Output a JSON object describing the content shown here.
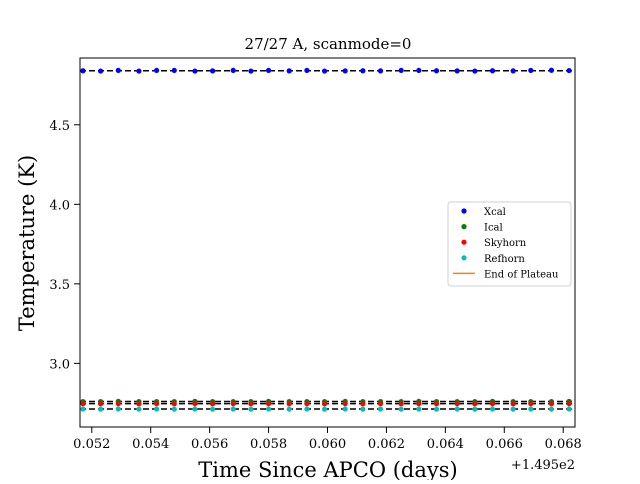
{
  "chart_data": {
    "type": "scatter",
    "title": "27/27 A, scanmode=0",
    "xlabel": "Time Since APCO (days)",
    "ylabel": "Temperature (K)",
    "offset_text": "+1.495e2",
    "xlim": [
      0.0516,
      0.0684
    ],
    "ylim": [
      2.6,
      4.92
    ],
    "x_ticks": [
      0.052,
      0.054,
      0.056,
      0.058,
      0.06,
      0.062,
      0.064,
      0.066,
      0.068
    ],
    "x_tick_labels": [
      "0.052",
      "0.054",
      "0.056",
      "0.058",
      "0.060",
      "0.062",
      "0.064",
      "0.066",
      "0.068"
    ],
    "y_ticks": [
      3.0,
      3.5,
      4.0,
      4.5
    ],
    "y_tick_labels": [
      "3.0",
      "3.5",
      "4.0",
      "4.5"
    ],
    "x": [
      0.0517,
      0.0523,
      0.0529,
      0.0536,
      0.0542,
      0.0548,
      0.0555,
      0.0561,
      0.0568,
      0.0574,
      0.058,
      0.0587,
      0.0593,
      0.0599,
      0.0606,
      0.0612,
      0.0618,
      0.0625,
      0.0631,
      0.0637,
      0.0644,
      0.065,
      0.0656,
      0.0663,
      0.0669,
      0.0676,
      0.0682
    ],
    "series": [
      {
        "name": "Xcal",
        "color": "#0000ff",
        "values": [
          4.84,
          4.838,
          4.842,
          4.838,
          4.842,
          4.842,
          4.838,
          4.839,
          4.842,
          4.838,
          4.842,
          4.839,
          4.842,
          4.838,
          4.839,
          4.84,
          4.839,
          4.842,
          4.842,
          4.84,
          4.839,
          4.838,
          4.84,
          4.839,
          4.842,
          4.843,
          4.841
        ]
      },
      {
        "name": "Ical",
        "color": "#008000",
        "values": [
          2.76,
          2.76,
          2.761,
          2.76,
          2.76,
          2.76,
          2.761,
          2.76,
          2.76,
          2.76,
          2.761,
          2.76,
          2.76,
          2.76,
          2.761,
          2.76,
          2.76,
          2.76,
          2.761,
          2.76,
          2.76,
          2.76,
          2.761,
          2.76,
          2.76,
          2.76,
          2.761
        ]
      },
      {
        "name": "Skyhorn",
        "color": "#ff0000",
        "values": [
          2.747,
          2.746,
          2.747,
          2.746,
          2.747,
          2.746,
          2.747,
          2.746,
          2.747,
          2.746,
          2.747,
          2.746,
          2.747,
          2.746,
          2.747,
          2.746,
          2.747,
          2.746,
          2.747,
          2.746,
          2.747,
          2.746,
          2.747,
          2.746,
          2.747,
          2.746,
          2.747
        ]
      },
      {
        "name": "Refhorn",
        "color": "#00bfbf",
        "values": [
          2.713,
          2.712,
          2.713,
          2.712,
          2.713,
          2.712,
          2.713,
          2.712,
          2.713,
          2.712,
          2.713,
          2.712,
          2.713,
          2.712,
          2.713,
          2.712,
          2.713,
          2.712,
          2.713,
          2.712,
          2.713,
          2.712,
          2.713,
          2.712,
          2.713,
          2.712,
          2.713
        ]
      }
    ],
    "reference_lines": [
      4.84,
      2.76,
      2.747,
      2.713
    ],
    "reference_line_color": "#000000",
    "plateau_line": {
      "name": "End of Plateau",
      "color": "#ff7f0e"
    },
    "legend": "center-right",
    "grid": false
  }
}
